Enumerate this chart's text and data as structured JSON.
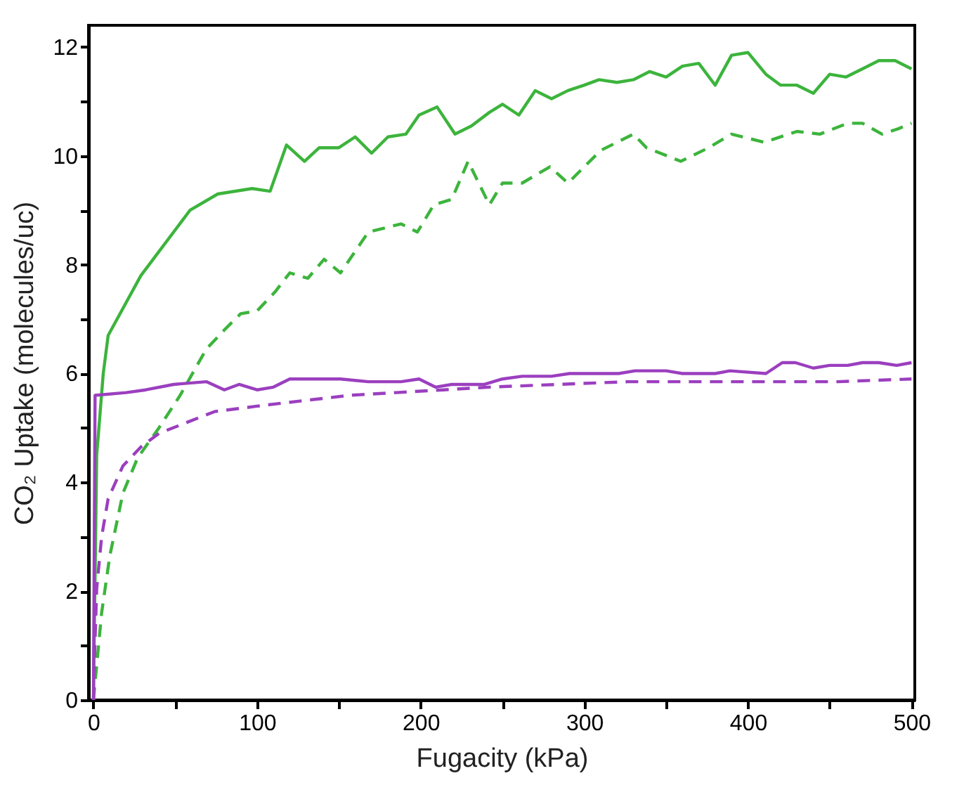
{
  "chart_data": {
    "type": "line",
    "xlabel": "Fugacity (kPa)",
    "ylabel": "CO₂ Uptake (molecules/uc)",
    "xlim": [
      -3,
      502
    ],
    "ylim": [
      0,
      12.4
    ],
    "xticks": [
      0,
      {
        "value": 50,
        "label": null
      },
      100,
      {
        "value": 150,
        "label": null
      },
      200,
      {
        "value": 250,
        "label": null
      },
      300,
      {
        "value": 350,
        "label": null
      },
      400,
      {
        "value": 450,
        "label": null
      },
      500
    ],
    "yticks": [
      0,
      {
        "value": 1,
        "label": null
      },
      2,
      {
        "value": 3,
        "label": null
      },
      4,
      {
        "value": 5,
        "label": null
      },
      6,
      {
        "value": 7,
        "label": null
      },
      8,
      {
        "value": 9,
        "label": null
      },
      10,
      {
        "value": 11,
        "label": null
      },
      12
    ],
    "series": [
      {
        "color": "#3cb43c",
        "line_style": "solid",
        "x": [
          0,
          2,
          6,
          9,
          29,
          59,
          76,
          97,
          108,
          118,
          129,
          138,
          150,
          160,
          170,
          180,
          191,
          199,
          210,
          221,
          231,
          242,
          250,
          260,
          270,
          280,
          290,
          300,
          309,
          320,
          330,
          340,
          350,
          360,
          370,
          380,
          390,
          400,
          411,
          420,
          430,
          440,
          450,
          460,
          470,
          480,
          490,
          500
        ],
        "values": [
          0,
          4.5,
          6.0,
          6.7,
          7.8,
          9.0,
          9.3,
          9.4,
          9.35,
          10.2,
          9.9,
          10.15,
          10.15,
          10.35,
          10.05,
          10.35,
          10.4,
          10.75,
          10.9,
          10.4,
          10.55,
          10.8,
          10.95,
          10.75,
          11.2,
          11.05,
          11.2,
          11.3,
          11.4,
          11.35,
          11.4,
          11.55,
          11.45,
          11.65,
          11.7,
          11.3,
          11.85,
          11.9,
          11.5,
          11.3,
          11.3,
          11.15,
          11.5,
          11.45,
          11.6,
          11.75,
          11.75,
          11.6
        ]
      },
      {
        "color": "#3cb43c",
        "line_style": "dashed",
        "x": [
          0,
          5,
          10,
          18,
          27,
          40,
          53,
          69,
          80,
          90,
          100,
          111,
          120,
          131,
          141,
          151,
          168,
          188,
          198,
          208,
          219,
          229,
          242,
          250,
          262,
          279,
          290,
          310,
          330,
          338,
          359,
          376,
          390,
          410,
          430,
          444,
          461,
          470,
          482,
          492,
          500
        ],
        "values": [
          0,
          1.6,
          2.65,
          3.8,
          4.45,
          5.0,
          5.6,
          6.45,
          6.8,
          7.1,
          7.15,
          7.5,
          7.85,
          7.75,
          8.1,
          7.85,
          8.6,
          8.75,
          8.6,
          9.1,
          9.2,
          9.9,
          9.1,
          9.5,
          9.5,
          9.8,
          9.5,
          10.1,
          10.4,
          10.15,
          9.9,
          10.15,
          10.4,
          10.25,
          10.45,
          10.4,
          10.6,
          10.6,
          10.4,
          10.5,
          10.6
        ]
      },
      {
        "color": "#9b3fbf",
        "line_style": "solid",
        "x": [
          0,
          1,
          20,
          32,
          49,
          69,
          80,
          89,
          100,
          110,
          120,
          140,
          151,
          168,
          188,
          199,
          209,
          219,
          239,
          250,
          262,
          280,
          291,
          301,
          321,
          331,
          350,
          360,
          380,
          389,
          411,
          421,
          429,
          440,
          450,
          461,
          470,
          480,
          491,
          500
        ],
        "values": [
          0,
          5.6,
          5.65,
          5.7,
          5.8,
          5.85,
          5.7,
          5.8,
          5.7,
          5.75,
          5.9,
          5.9,
          5.9,
          5.85,
          5.85,
          5.9,
          5.75,
          5.8,
          5.8,
          5.9,
          5.95,
          5.95,
          6.0,
          6.0,
          6.0,
          6.05,
          6.05,
          6.0,
          6.0,
          6.05,
          6.0,
          6.2,
          6.2,
          6.1,
          6.15,
          6.15,
          6.2,
          6.2,
          6.15,
          6.2
        ]
      },
      {
        "color": "#9b3fbf",
        "line_style": "dashed",
        "x": [
          0,
          1,
          2,
          5,
          9,
          18,
          29,
          40,
          57,
          74,
          100,
          128,
          157,
          185,
          214,
          242,
          284,
          327,
          370,
          412,
          455,
          500
        ],
        "values": [
          0,
          1.1,
          2.05,
          3.0,
          3.7,
          4.3,
          4.65,
          4.9,
          5.1,
          5.3,
          5.4,
          5.5,
          5.6,
          5.65,
          5.7,
          5.75,
          5.8,
          5.85,
          5.85,
          5.85,
          5.85,
          5.9
        ]
      }
    ]
  }
}
